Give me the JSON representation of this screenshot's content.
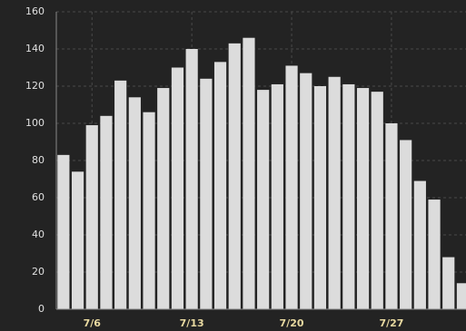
{
  "chart_data": {
    "type": "bar",
    "categories": [
      null,
      null,
      "7/6",
      null,
      null,
      null,
      null,
      null,
      null,
      "7/13",
      null,
      null,
      null,
      null,
      null,
      null,
      "7/20",
      null,
      null,
      null,
      null,
      null,
      null,
      "7/27",
      null,
      null,
      null,
      null,
      null
    ],
    "values": [
      83,
      74,
      99,
      104,
      123,
      114,
      106,
      119,
      130,
      140,
      124,
      133,
      143,
      146,
      118,
      121,
      131,
      127,
      120,
      125,
      121,
      119,
      117,
      100,
      91,
      69,
      59,
      28,
      14
    ],
    "color": "#dcdcdc",
    "ylim": [
      0,
      160
    ],
    "yticks": [
      0,
      20,
      40,
      60,
      80,
      100,
      120,
      140,
      160
    ],
    "grid": true
  }
}
